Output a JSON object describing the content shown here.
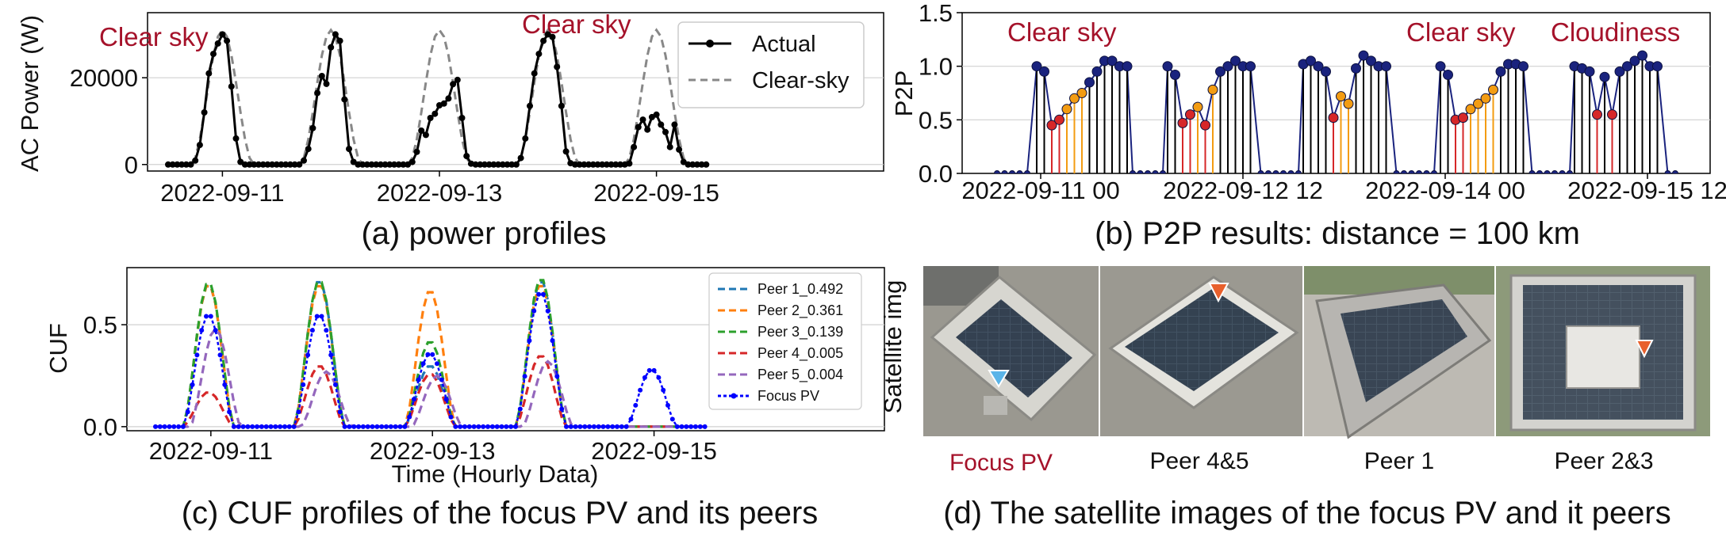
{
  "charts": [
    {
      "id": "a",
      "type": "line",
      "caption": "(a) power profiles",
      "ylabel": "AC Power (W)",
      "xticks": [
        "2022-09-11",
        "2022-09-13",
        "2022-09-15"
      ],
      "yticks": [
        "0",
        "20000"
      ],
      "ylim": [
        -1500,
        35000
      ],
      "grid": "horizontal",
      "legend_placement": "top-right",
      "annotations": [
        "Clear sky",
        "Clear sky"
      ],
      "series": [
        {
          "name": "Actual",
          "color": "#000000",
          "style": "solid-dots",
          "days_peak": [
            30000,
            30000,
            19500,
            30000,
            11500
          ]
        },
        {
          "name": "Clear-sky",
          "color": "#888888",
          "style": "dashed",
          "days_peak": [
            31000,
            31000,
            31000,
            31000,
            31000
          ]
        }
      ]
    },
    {
      "id": "b",
      "type": "stem",
      "caption": "(b) P2P results: distance = 100 km",
      "ylabel": "P2P",
      "xticks": [
        "2022-09-11 00",
        "2022-09-12 12",
        "2022-09-14 00",
        "2022-09-15 12"
      ],
      "yticks": [
        "0.0",
        "0.5",
        "1.0",
        "1.5"
      ],
      "ylim": [
        0,
        1.5
      ],
      "grid": "horizontal",
      "annotations": [
        "Clear sky",
        "Clear sky",
        "Cloudiness"
      ],
      "stem_colors": {
        "normal": "#000000",
        "low": "#d62728",
        "mid": "#f39c12"
      },
      "days_values": [
        [
          1.0,
          0.95,
          0.45,
          0.5,
          0.6,
          0.7,
          0.75,
          0.85,
          0.95,
          1.05,
          1.05,
          1.0,
          1.0
        ],
        [
          1.0,
          0.92,
          0.47,
          0.55,
          0.62,
          0.45,
          0.78,
          0.95,
          1.0,
          1.05,
          1.0,
          1.0
        ],
        [
          1.02,
          1.05,
          1.0,
          0.95,
          0.52,
          0.72,
          0.65,
          0.98,
          1.1,
          1.05,
          1.0,
          1.0
        ],
        [
          1.0,
          0.92,
          0.5,
          0.52,
          0.6,
          0.65,
          0.7,
          0.78,
          0.95,
          1.02,
          1.02,
          1.0
        ],
        [
          1.0,
          0.98,
          0.95,
          0.55,
          0.9,
          0.55,
          0.95,
          1.0,
          1.05,
          1.1,
          1.0,
          1.0
        ]
      ]
    },
    {
      "id": "c",
      "type": "line",
      "caption": "(c) CUF profiles of the focus PV and its peers",
      "ylabel": "CUF",
      "xlabel": "Time (Hourly Data)",
      "xticks": [
        "2022-09-11",
        "2022-09-13",
        "2022-09-15"
      ],
      "yticks": [
        "0.0",
        "0.5"
      ],
      "ylim": [
        -0.02,
        0.78
      ],
      "grid": "horizontal",
      "legend_placement": "top-right",
      "series": [
        {
          "name": "Peer 1_0.492",
          "color": "#1f77b4",
          "days_peak": [
            0.7,
            0.72,
            0.3,
            0.72,
            0.0
          ]
        },
        {
          "name": "Peer 2_0.361",
          "color": "#ff7f0e",
          "days_peak": [
            0.7,
            0.7,
            0.67,
            0.7,
            0.0
          ]
        },
        {
          "name": "Peer 3_0.139",
          "color": "#2ca02c",
          "days_peak": [
            0.71,
            0.72,
            0.42,
            0.73,
            0.0
          ]
        },
        {
          "name": "Peer 4_0.005",
          "color": "#d62728",
          "days_peak": [
            0.17,
            0.3,
            0.26,
            0.35,
            0.0
          ]
        },
        {
          "name": "Peer 5_0.004",
          "color": "#9467bd",
          "days_peak": [
            0.48,
            0.27,
            0.25,
            0.32,
            0.0
          ]
        },
        {
          "name": "Focus PV",
          "color": "#0000ff",
          "days_peak": [
            0.55,
            0.55,
            0.36,
            0.66,
            0.28
          ]
        }
      ]
    }
  ],
  "panel_d": {
    "caption": "(d) The satellite images of the focus PV and it peers",
    "side_label": "Satellite img",
    "images": [
      {
        "label": "Focus PV",
        "label_color": "#a5122a",
        "marker_color": "#5ab4e8"
      },
      {
        "label": "Peer 4&5",
        "label_color": "#111111",
        "marker_color": "#e8602c"
      },
      {
        "label": "Peer 1",
        "label_color": "#111111",
        "marker_color": ""
      },
      {
        "label": "Peer 2&3",
        "label_color": "#111111",
        "marker_color": "#e8602c"
      }
    ]
  }
}
